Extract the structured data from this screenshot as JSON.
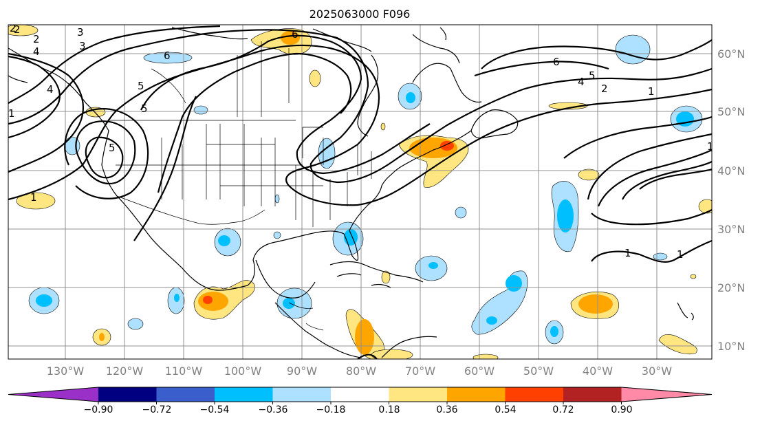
{
  "title": "2025063000 F096",
  "lon_labels": [
    "130°W",
    "120°W",
    "110°W",
    "100°W",
    "90°W",
    "80°W",
    "70°W",
    "60°W",
    "50°W",
    "40°W",
    "30°W"
  ],
  "lat_labels": [
    "60°N",
    "50°N",
    "40°N",
    "30°N",
    "20°N",
    "10°N"
  ],
  "contour_labels": [
    "2",
    "3",
    "4",
    "5",
    "5",
    "6",
    "2",
    "1",
    "6",
    "6",
    "4",
    "5",
    "2",
    "1",
    "1",
    "1",
    "1",
    "1",
    "2",
    "3",
    "4",
    "5"
  ],
  "colorbar": {
    "ticks": [
      "−0.90",
      "−0.72",
      "−0.54",
      "−0.36",
      "−0.18",
      "0.18",
      "0.36",
      "0.54",
      "0.72",
      "0.90"
    ],
    "colors": [
      "#9b30c8",
      "#000080",
      "#3a5fcd",
      "#00bfff",
      "#aee0ff",
      "#ffffff",
      "#ffe680",
      "#ffa500",
      "#ff4000",
      "#b22222",
      "#ff8aa8"
    ],
    "extend": "both"
  },
  "fill_colors": {
    "light_blue": "#aee0ff",
    "blue": "#00bfff",
    "light_yellow": "#ffe680",
    "orange": "#ffa500",
    "red": "#ff4000"
  }
}
